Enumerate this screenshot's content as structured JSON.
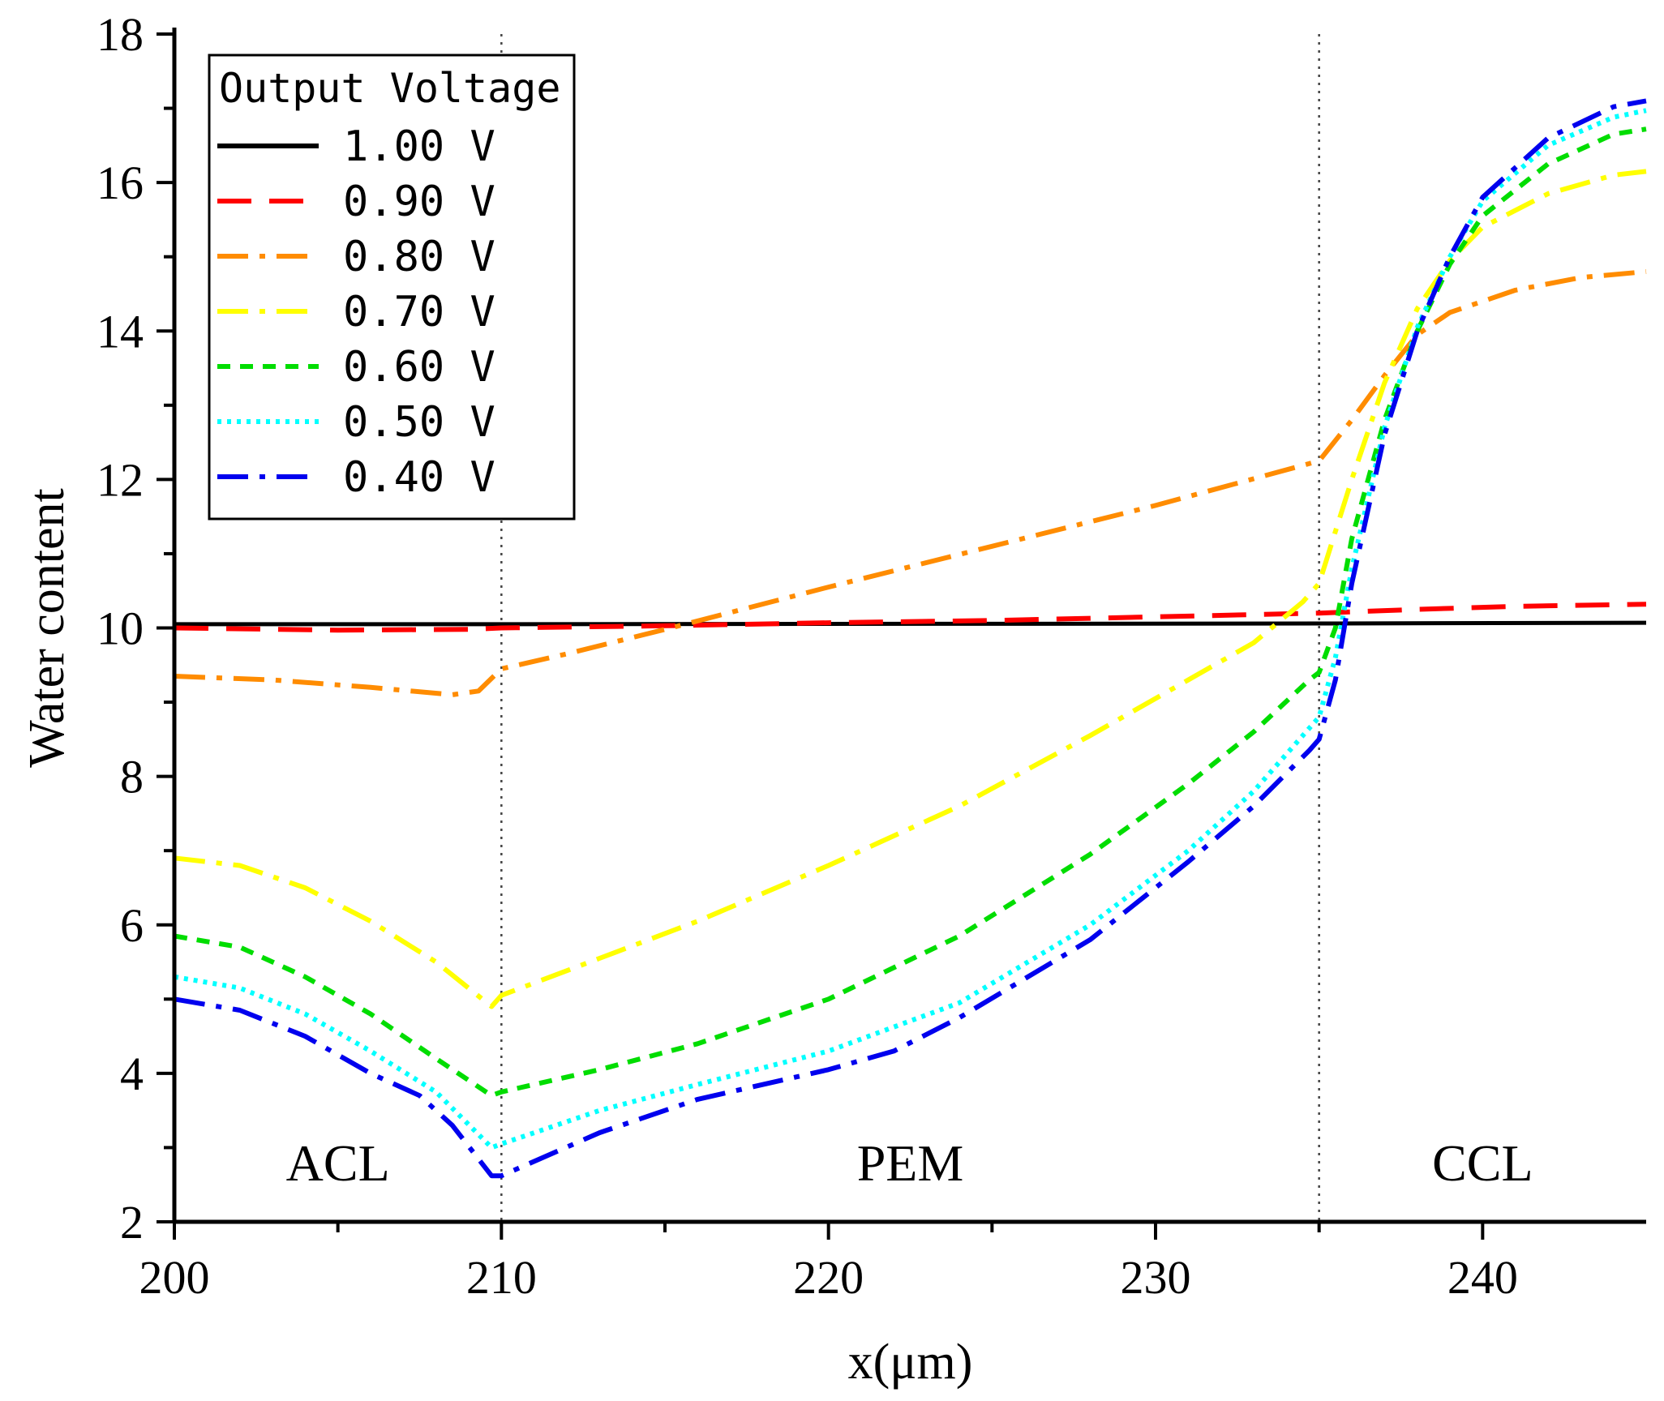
{
  "chart_data": {
    "type": "line",
    "xlabel": "x(μm)",
    "ylabel": "Water content",
    "xlim": [
      200,
      245
    ],
    "ylim": [
      2,
      18
    ],
    "x_ticks": [
      200,
      210,
      220,
      230,
      240
    ],
    "y_ticks": [
      2,
      4,
      6,
      8,
      10,
      12,
      14,
      16,
      18
    ],
    "x_tick_labels": [
      "200",
      "210",
      "220",
      "230",
      "240"
    ],
    "y_tick_labels": [
      "2",
      "4",
      "6",
      "8",
      "10",
      "12",
      "14",
      "16",
      "18"
    ],
    "boundaries": [
      210,
      235
    ],
    "regions": [
      {
        "label": "ACL",
        "x": 205,
        "y": 2.8
      },
      {
        "label": "PEM",
        "x": 222.5,
        "y": 2.8
      },
      {
        "label": "CCL",
        "x": 240,
        "y": 2.8
      }
    ],
    "legend": {
      "title": "Output Voltage",
      "position": "top-left"
    },
    "series": [
      {
        "name": "1.00 V",
        "color": "#000000",
        "dash": "solid",
        "points": [
          [
            200,
            10.05
          ],
          [
            210,
            10.05
          ],
          [
            235,
            10.06
          ],
          [
            245,
            10.07
          ]
        ]
      },
      {
        "name": "0.90 V",
        "color": "#ff0000",
        "dash": "long-dash",
        "points": [
          [
            200,
            10.0
          ],
          [
            205,
            9.97
          ],
          [
            209,
            9.98
          ],
          [
            210,
            10.0
          ],
          [
            215,
            10.03
          ],
          [
            220,
            10.07
          ],
          [
            225,
            10.1
          ],
          [
            230,
            10.15
          ],
          [
            235,
            10.2
          ],
          [
            238,
            10.25
          ],
          [
            241,
            10.29
          ],
          [
            245,
            10.32
          ]
        ]
      },
      {
        "name": "0.80 V",
        "color": "#ff8c00",
        "dash": "dash-dot",
        "points": [
          [
            200,
            9.35
          ],
          [
            203,
            9.3
          ],
          [
            206,
            9.2
          ],
          [
            208.5,
            9.1
          ],
          [
            209.3,
            9.15
          ],
          [
            210,
            9.45
          ],
          [
            212,
            9.65
          ],
          [
            215,
            9.98
          ],
          [
            220,
            10.55
          ],
          [
            225,
            11.1
          ],
          [
            230,
            11.65
          ],
          [
            235,
            12.25
          ],
          [
            236,
            12.8
          ],
          [
            237,
            13.4
          ],
          [
            238,
            13.95
          ],
          [
            239,
            14.25
          ],
          [
            241,
            14.55
          ],
          [
            243,
            14.72
          ],
          [
            245,
            14.8
          ]
        ]
      },
      {
        "name": "0.70 V",
        "color": "#ffff00",
        "dash": "dash-dot",
        "points": [
          [
            200,
            6.9
          ],
          [
            202,
            6.8
          ],
          [
            204,
            6.5
          ],
          [
            206,
            6.05
          ],
          [
            208,
            5.5
          ],
          [
            209.7,
            4.9
          ],
          [
            210,
            5.05
          ],
          [
            213,
            5.55
          ],
          [
            216,
            6.05
          ],
          [
            220,
            6.8
          ],
          [
            224,
            7.6
          ],
          [
            228,
            8.55
          ],
          [
            231,
            9.3
          ],
          [
            233,
            9.8
          ],
          [
            234.5,
            10.35
          ],
          [
            235,
            10.6
          ],
          [
            235.5,
            11.3
          ],
          [
            236,
            12.0
          ],
          [
            237,
            13.3
          ],
          [
            238,
            14.3
          ],
          [
            239,
            14.95
          ],
          [
            240,
            15.4
          ],
          [
            242,
            15.85
          ],
          [
            244,
            16.1
          ],
          [
            245,
            16.15
          ]
        ]
      },
      {
        "name": "0.60 V",
        "color": "#00dd00",
        "dash": "short-dash",
        "points": [
          [
            200,
            5.85
          ],
          [
            202,
            5.7
          ],
          [
            204,
            5.3
          ],
          [
            206,
            4.8
          ],
          [
            208,
            4.2
          ],
          [
            209.7,
            3.7
          ],
          [
            210,
            3.75
          ],
          [
            213,
            4.05
          ],
          [
            216,
            4.4
          ],
          [
            220,
            5.0
          ],
          [
            224,
            5.85
          ],
          [
            228,
            6.95
          ],
          [
            231,
            7.9
          ],
          [
            233,
            8.6
          ],
          [
            234.7,
            9.3
          ],
          [
            235,
            9.4
          ],
          [
            235.5,
            10.0
          ],
          [
            236,
            11.2
          ],
          [
            237,
            12.8
          ],
          [
            238,
            14.0
          ],
          [
            239,
            14.9
          ],
          [
            240,
            15.55
          ],
          [
            242,
            16.25
          ],
          [
            244,
            16.65
          ],
          [
            245,
            16.72
          ]
        ]
      },
      {
        "name": "0.50 V",
        "color": "#00ffff",
        "dash": "dotted",
        "points": [
          [
            200,
            5.3
          ],
          [
            202,
            5.15
          ],
          [
            204,
            4.8
          ],
          [
            206,
            4.3
          ],
          [
            208,
            3.75
          ],
          [
            209.7,
            3.0
          ],
          [
            210,
            3.05
          ],
          [
            213,
            3.5
          ],
          [
            216,
            3.85
          ],
          [
            220,
            4.3
          ],
          [
            224,
            4.95
          ],
          [
            228,
            6.0
          ],
          [
            231,
            7.0
          ],
          [
            233,
            7.8
          ],
          [
            235,
            8.8
          ],
          [
            235.5,
            9.6
          ],
          [
            236,
            10.8
          ],
          [
            237,
            12.7
          ],
          [
            238,
            14.05
          ],
          [
            239,
            15.0
          ],
          [
            240,
            15.75
          ],
          [
            242,
            16.5
          ],
          [
            244,
            16.88
          ],
          [
            245,
            16.97
          ]
        ]
      },
      {
        "name": "0.40 V",
        "color": "#0000ee",
        "dash": "dash-dot",
        "points": [
          [
            200,
            5.0
          ],
          [
            202,
            4.85
          ],
          [
            204,
            4.5
          ],
          [
            206,
            4.0
          ],
          [
            207.5,
            3.7
          ],
          [
            208.5,
            3.3
          ],
          [
            209.7,
            2.62
          ],
          [
            210,
            2.62
          ],
          [
            213,
            3.2
          ],
          [
            216,
            3.65
          ],
          [
            220,
            4.05
          ],
          [
            222,
            4.3
          ],
          [
            224,
            4.75
          ],
          [
            228,
            5.8
          ],
          [
            231,
            6.85
          ],
          [
            233,
            7.6
          ],
          [
            234.7,
            8.35
          ],
          [
            235,
            8.5
          ],
          [
            235.5,
            9.3
          ],
          [
            236,
            10.6
          ],
          [
            237,
            12.6
          ],
          [
            238,
            14.0
          ],
          [
            239,
            15.0
          ],
          [
            240,
            15.8
          ],
          [
            242,
            16.6
          ],
          [
            244,
            17.02
          ],
          [
            245,
            17.1
          ]
        ]
      }
    ]
  }
}
